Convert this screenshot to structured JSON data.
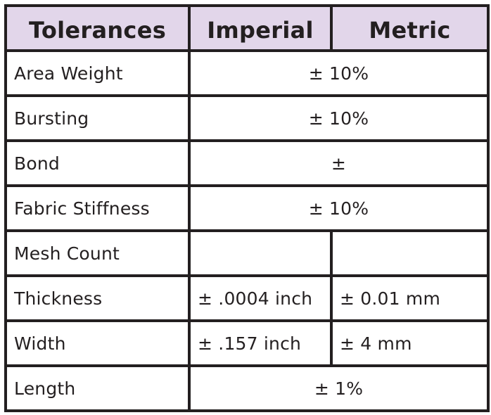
{
  "header": {
    "tolerances": "Tolerances",
    "imperial": "Imperial",
    "metric": "Metric"
  },
  "rows": [
    {
      "property": "Area Weight",
      "value": "± 10%"
    },
    {
      "property": "Bursting",
      "value": "± 10%"
    },
    {
      "property": "Bond",
      "value": "±"
    },
    {
      "property": "Fabric Stiffness",
      "value": "± 10%"
    },
    {
      "property": "Mesh Count",
      "imperial": "",
      "metric": ""
    },
    {
      "property": "Thickness",
      "imperial": "± .0004 inch",
      "metric": "± 0.01 mm"
    },
    {
      "property": "Width",
      "imperial": "± .157 inch",
      "metric": "± 4 mm"
    },
    {
      "property": "Length",
      "value": "± 1%"
    }
  ],
  "colors": {
    "header_background": "#e2d6ea",
    "border": "#231f20",
    "text": "#231f20"
  }
}
